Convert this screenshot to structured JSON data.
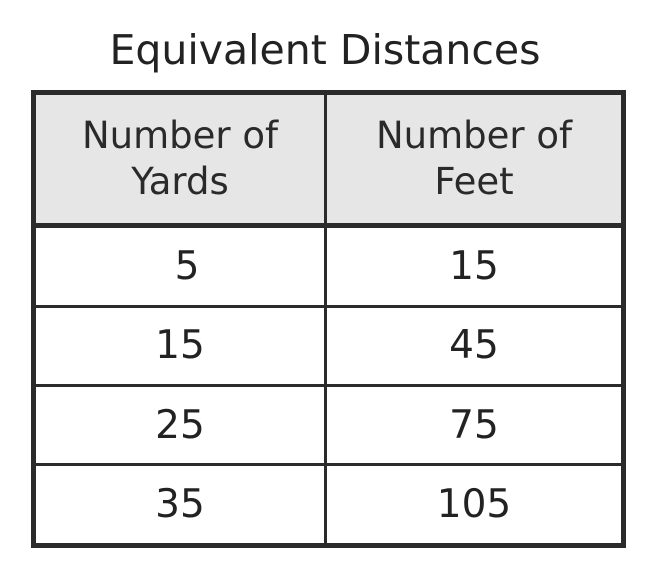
{
  "chart_data": {
    "type": "table",
    "title": "Equivalent Distances",
    "columns": [
      [
        "Number of",
        "Yards"
      ],
      [
        "Number of",
        "Feet"
      ]
    ],
    "rows": [
      [
        "5",
        "15"
      ],
      [
        "15",
        "45"
      ],
      [
        "25",
        "75"
      ],
      [
        "35",
        "105"
      ]
    ]
  }
}
